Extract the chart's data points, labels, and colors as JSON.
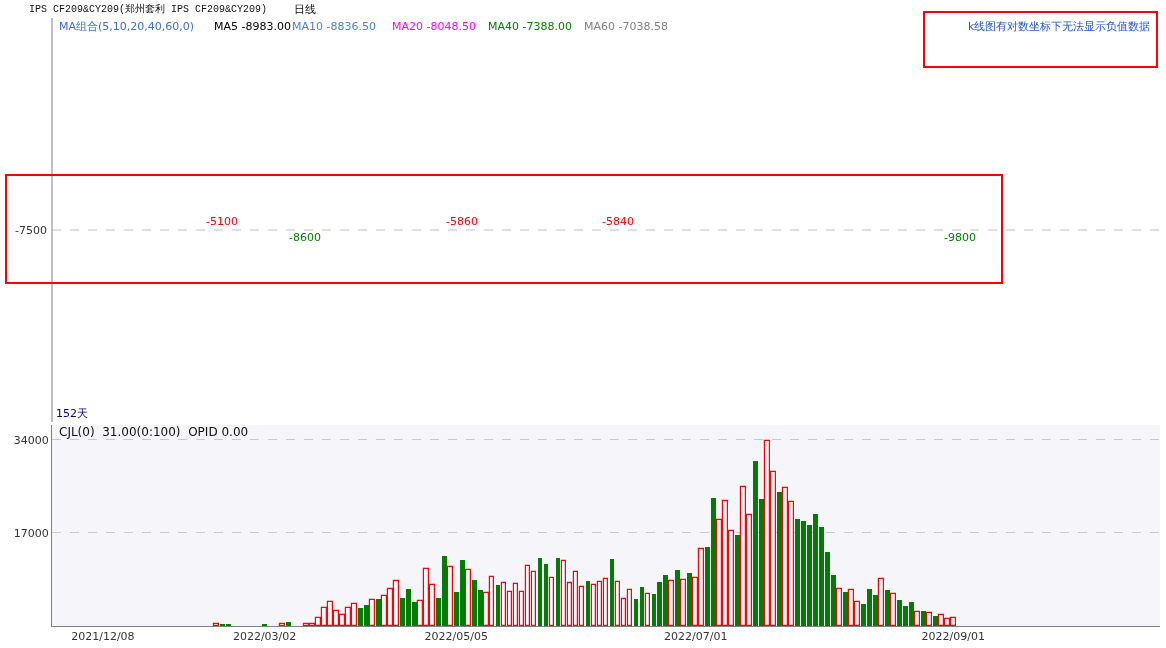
{
  "chart_data": [
    {
      "type": "other",
      "title": "IPS CF209&CY209(郑州套利 IPS CF209&CY209)",
      "subtitle": "日线",
      "annotations": [
        "MA组合(5,10,20,40,60,0)",
        "MA5 -8983.00",
        "MA10 -8836.50",
        "MA20 -8048.50",
        "MA40 -7388.00",
        "MA60 -7038.58",
        "k线图有对数坐标下无法显示负值数据",
        "-5100",
        "-8600",
        "-5860",
        "-5840",
        "-9800",
        "152天",
        "-7500"
      ]
    },
    {
      "type": "bar",
      "annotations": [
        "CJL(0)  31.00(0:100)  OPID 0.00"
      ],
      "categories": [
        null,
        null,
        null,
        null,
        null,
        null,
        null,
        null,
        "2021/12/08",
        null,
        null,
        null,
        null,
        null,
        null,
        null,
        null,
        null,
        null,
        null,
        null,
        null,
        null,
        null,
        null,
        null,
        null,
        null,
        null,
        null,
        null,
        null,
        null,
        null,
        null,
        "2022/03/02",
        null,
        null,
        null,
        null,
        null,
        null,
        null,
        null,
        null,
        null,
        null,
        null,
        null,
        null,
        null,
        null,
        null,
        null,
        null,
        null,
        null,
        null,
        null,
        null,
        null,
        null,
        null,
        null,
        null,
        null,
        null,
        "2022/05/05",
        null,
        null,
        null,
        null,
        null,
        null,
        null,
        null,
        null,
        null,
        null,
        null,
        null,
        null,
        null,
        null,
        null,
        null,
        null,
        null,
        null,
        null,
        null,
        null,
        null,
        null,
        null,
        null,
        null,
        null,
        null,
        null,
        null,
        null,
        null,
        null,
        null,
        null,
        null,
        "2022/07/01",
        null,
        null,
        null,
        null,
        null,
        null,
        null,
        null,
        null,
        null,
        null,
        null,
        null,
        null,
        null,
        null,
        null,
        null,
        null,
        null,
        null,
        null,
        null,
        null,
        null,
        null,
        null,
        null,
        null,
        null,
        null,
        null,
        null,
        null,
        null,
        null,
        null,
        null,
        null,
        null,
        null,
        null,
        "2022/09/01"
      ],
      "series": [
        {
          "color": "#ff0000",
          "values": [
            null,
            null,
            null,
            null,
            null,
            null,
            null,
            null,
            null,
            null,
            null,
            null,
            null,
            null,
            null,
            null,
            null,
            null,
            null,
            null,
            null,
            null,
            null,
            null,
            null,
            null,
            null,
            300,
            null,
            null,
            null,
            null,
            null,
            null,
            null,
            null,
            null,
            null,
            400,
            null,
            null,
            null,
            300,
            400,
            1400,
            3200,
            4300,
            2800,
            2000,
            3300,
            4100,
            null,
            null,
            4700,
            null,
            5500,
            6800,
            8200,
            null,
            null,
            null,
            4500,
            10400,
            7400,
            null,
            null,
            10700,
            null,
            null,
            10200,
            null,
            null,
            6000,
            8900,
            null,
            7800,
            6200,
            7600,
            6300,
            10900,
            9800,
            null,
            null,
            8700,
            null,
            11800,
            7800,
            9800,
            7100,
            null,
            7400,
            8000,
            8500,
            null,
            8000,
            4900,
            6500,
            null,
            null,
            5800,
            null,
            null,
            null,
            8200,
            null,
            8400,
            null,
            8800,
            14100,
            null,
            null,
            19300,
            22800,
            17400,
            null,
            25400,
            20200,
            null,
            null,
            33700,
            28100,
            null,
            25200,
            22600,
            null,
            null,
            null,
            null,
            null,
            null,
            null,
            6800,
            null,
            6600,
            4400,
            null,
            null,
            null,
            8600,
            null,
            5800,
            null,
            null,
            null,
            2500,
            null,
            2300,
            null,
            2000,
            1200,
            1400
          ]
        },
        {
          "color": "#067a06",
          "values": [
            null,
            null,
            null,
            null,
            null,
            null,
            null,
            null,
            null,
            null,
            null,
            null,
            null,
            null,
            null,
            null,
            null,
            null,
            null,
            null,
            null,
            null,
            null,
            null,
            null,
            null,
            null,
            null,
            300,
            400,
            null,
            null,
            null,
            null,
            null,
            300,
            null,
            null,
            null,
            800,
            null,
            null,
            null,
            null,
            null,
            null,
            null,
            null,
            null,
            null,
            null,
            3200,
            3800,
            null,
            4900,
            null,
            null,
            null,
            5200,
            6700,
            4300,
            null,
            null,
            null,
            5200,
            12800,
            null,
            6300,
            12000,
            null,
            8400,
            6500,
            null,
            null,
            7400,
            null,
            null,
            null,
            null,
            null,
            null,
            12400,
            11300,
            null,
            12400,
            null,
            null,
            null,
            null,
            8200,
            null,
            null,
            null,
            12200,
            null,
            null,
            null,
            5000,
            7200,
            null,
            5800,
            8100,
            9400,
            null,
            10300,
            null,
            9600,
            null,
            null,
            14400,
            23400,
            null,
            null,
            null,
            16600,
            null,
            null,
            30200,
            23200,
            null,
            null,
            24500,
            null,
            null,
            19500,
            19200,
            18400,
            20500,
            18100,
            13500,
            9400,
            null,
            6300,
            null,
            null,
            4100,
            6800,
            5700,
            null,
            6500,
            null,
            4800,
            3700,
            4400,
            null,
            2800,
            null,
            1800,
            null,
            null,
            null
          ]
        }
      ],
      "ylim": [
        0,
        36700
      ],
      "yticks": [
        17000,
        34000
      ],
      "grid": "y"
    }
  ]
}
